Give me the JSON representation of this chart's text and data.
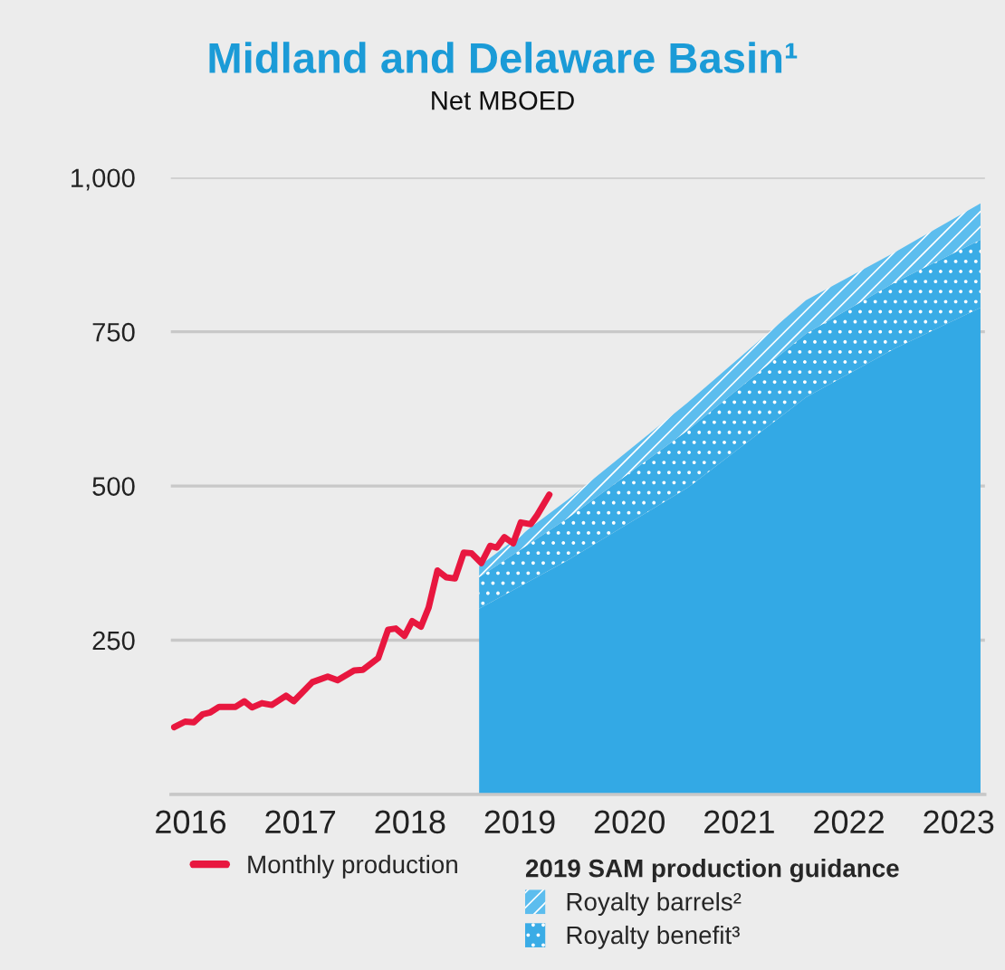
{
  "chart_data": {
    "type": "area",
    "title": "Midland and Delaware Basin¹",
    "subtitle": "Net MBOED",
    "xlim": [
      2015.82,
      2023.24
    ],
    "xticks": [
      2016,
      2017,
      2018,
      2019,
      2020,
      2021,
      2022,
      2023
    ],
    "ylim": [
      0,
      1000
    ],
    "yticks": [
      {
        "value": 0,
        "label": null
      },
      250,
      500,
      750,
      {
        "value": 1000,
        "label": "1,000"
      }
    ],
    "grid": "y",
    "legend": "bottom",
    "legend_title": "2019 SAM production guidance",
    "stacked": true,
    "series": [
      {
        "name": "Monthly production",
        "type": "line",
        "color": "#e8173f",
        "x": [
          2015.85,
          2015.95,
          2016.03,
          2016.11,
          2016.18,
          2016.26,
          2016.41,
          2016.49,
          2016.56,
          2016.65,
          2016.74,
          2016.87,
          2016.94,
          2017.11,
          2017.25,
          2017.34,
          2017.49,
          2017.57,
          2017.71,
          2017.8,
          2017.87,
          2017.95,
          2018.02,
          2018.1,
          2018.17,
          2018.25,
          2018.33,
          2018.41,
          2018.49,
          2018.56,
          2018.65,
          2018.73,
          2018.79,
          2018.86,
          2018.94,
          2019.01,
          2019.1,
          2019.16,
          2019.27
        ],
        "values": [
          109,
          118,
          117,
          130,
          133,
          142,
          142,
          151,
          141,
          148,
          145,
          160,
          151,
          182,
          191,
          185,
          201,
          202,
          221,
          267,
          269,
          257,
          281,
          272,
          303,
          363,
          352,
          350,
          392,
          391,
          375,
          403,
          400,
          417,
          407,
          441,
          438,
          453,
          486
        ]
      },
      {
        "color": "#33a9e5",
        "x": [
          2018.63,
          2019.44,
          2020.53,
          2021.61,
          2022.42,
          2023.2
        ],
        "values": [
          301,
          380,
          497,
          644,
          723,
          789
        ]
      },
      {
        "name": "Royalty benefit³",
        "color": "#3aace6",
        "x": [
          2018.63,
          2019.44,
          2020.53,
          2021.61,
          2022.42,
          2023.2
        ],
        "values": [
          51,
          68,
          93,
          103,
          107,
          110
        ]
      },
      {
        "name": "Royalty barrels²",
        "color": "#5cbdee",
        "x": [
          2018.63,
          2019.44,
          2020.53,
          2021.61,
          2022.42,
          2023.2
        ],
        "values": [
          18,
          30,
          45,
          54,
          49,
          59
        ]
      }
    ]
  }
}
